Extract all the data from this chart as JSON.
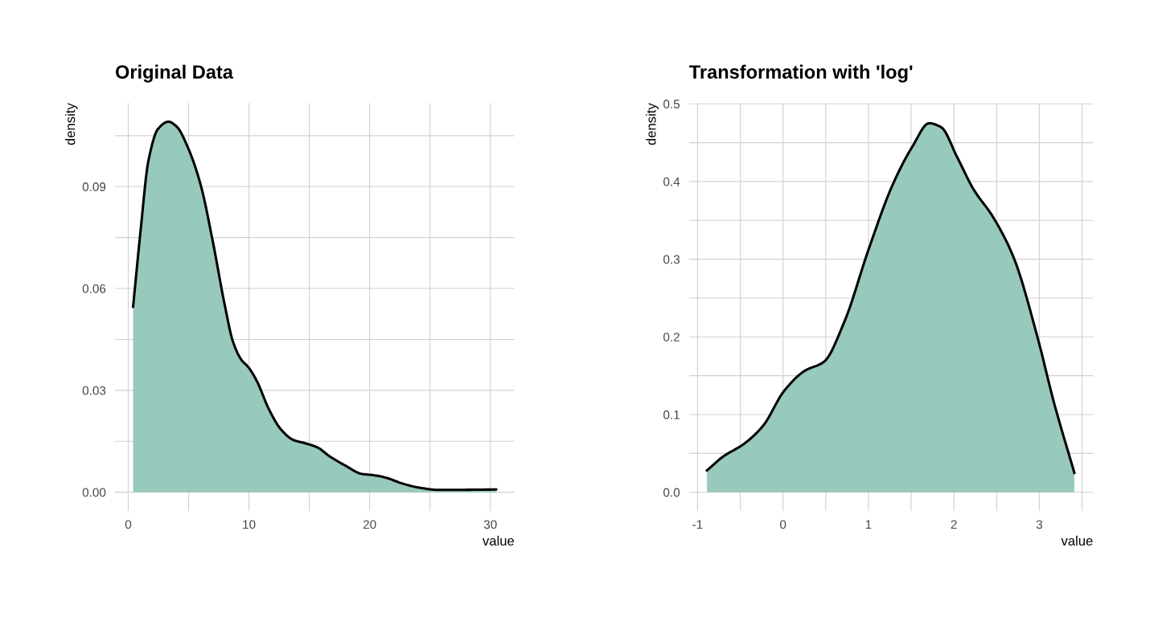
{
  "chart_data": [
    {
      "type": "area",
      "title": "Original Data",
      "xlabel": "value",
      "ylabel": "density",
      "color": "#97c9bc",
      "grid": true,
      "x": [
        0.4,
        1.0,
        1.67,
        2.47,
        3.33,
        4.0,
        5.0,
        6.0,
        7.0,
        8.0,
        8.67,
        9.33,
        10,
        10.67,
        11.67,
        12.67,
        13.67,
        14.67,
        15.67,
        16.67,
        18,
        19.33,
        20.33,
        21.33,
        22.67,
        24,
        25.67,
        27.33,
        30.47
      ],
      "values": [
        0.0546,
        0.0763,
        0.0976,
        0.107,
        0.1091,
        0.1077,
        0.101,
        0.0905,
        0.0739,
        0.055,
        0.0444,
        0.0392,
        0.0366,
        0.0326,
        0.0243,
        0.0184,
        0.0154,
        0.0144,
        0.0132,
        0.0106,
        0.0078,
        0.0054,
        0.005,
        0.0043,
        0.0026,
        0.0014,
        0.0007,
        0.0007,
        0.0008
      ],
      "xlim": [
        -1.1,
        32
      ],
      "ylim": [
        -0.0055,
        0.1146
      ],
      "xticks": [
        0,
        {
          "value": 5,
          "label": null
        },
        10,
        {
          "value": 15,
          "label": null
        },
        20,
        {
          "value": 25,
          "label": null
        },
        30
      ],
      "yticks": [
        {
          "value": 0,
          "label": "0.00"
        },
        {
          "value": 0.015,
          "label": null
        },
        {
          "value": 0.03,
          "label": "0.03"
        },
        {
          "value": 0.045,
          "label": null
        },
        {
          "value": 0.06,
          "label": "0.06"
        },
        {
          "value": 0.075,
          "label": null
        },
        {
          "value": 0.09,
          "label": "0.09"
        },
        {
          "value": 0.105,
          "label": null
        }
      ]
    },
    {
      "type": "area",
      "title": "Transformation with 'log'",
      "xlabel": "value",
      "ylabel": "density",
      "color": "#97c9bc",
      "grid": true,
      "x": [
        -0.89,
        -0.7,
        -0.46,
        -0.23,
        0.01,
        0.25,
        0.48,
        0.72,
        1.0,
        1.28,
        1.52,
        1.71,
        1.85,
        2.04,
        2.23,
        2.46,
        2.7,
        2.98,
        3.17,
        3.41
      ],
      "values": [
        0.028,
        0.046,
        0.062,
        0.086,
        0.13,
        0.156,
        0.168,
        0.22,
        0.312,
        0.395,
        0.446,
        0.475,
        0.47,
        0.431,
        0.39,
        0.354,
        0.302,
        0.199,
        0.116,
        0.025
      ],
      "xlim": [
        -1.1,
        3.63
      ],
      "ylim": [
        -0.024,
        0.501
      ],
      "xticks": [
        -1,
        {
          "value": -0.5,
          "label": null
        },
        0,
        {
          "value": 0.5,
          "label": null
        },
        1,
        {
          "value": 1.5,
          "label": null
        },
        2,
        {
          "value": 2.5,
          "label": null
        },
        3,
        {
          "value": 3.5,
          "label": null
        }
      ],
      "yticks": [
        {
          "value": 0,
          "label": "0.0"
        },
        {
          "value": 0.05,
          "label": null
        },
        0.1,
        {
          "value": 0.15,
          "label": null
        },
        0.2,
        {
          "value": 0.25,
          "label": null
        },
        0.3,
        {
          "value": 0.35,
          "label": null
        },
        0.4,
        {
          "value": 0.45,
          "label": null
        },
        0.5
      ]
    }
  ]
}
